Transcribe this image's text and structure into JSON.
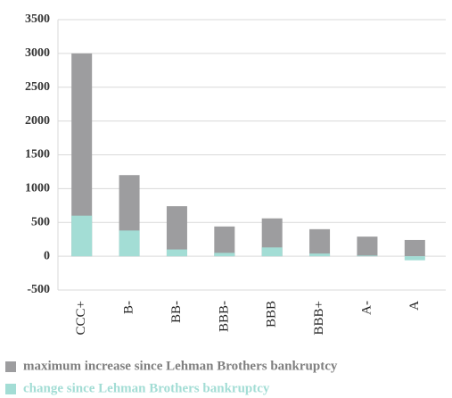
{
  "chart_data": {
    "type": "bar",
    "categories": [
      "CCC+",
      "B-",
      "BB-",
      "BBB-",
      "BBB",
      "BBB+",
      "A-",
      "A"
    ],
    "series": [
      {
        "name": "maximum increase since Lehman Brothers bankruptcy",
        "color": "#9d9d9f",
        "values": [
          3000,
          1200,
          740,
          440,
          560,
          400,
          290,
          240
        ]
      },
      {
        "name": "change since Lehman Brothers bankruptcy",
        "color": "#a3ddd5",
        "values": [
          600,
          380,
          100,
          50,
          130,
          40,
          10,
          -60
        ]
      }
    ],
    "ylim": [
      -500,
      3500
    ],
    "yticks": [
      -500,
      0,
      500,
      1000,
      1500,
      2000,
      2500,
      3000,
      3500
    ],
    "grid": true,
    "legend": "bottom"
  }
}
